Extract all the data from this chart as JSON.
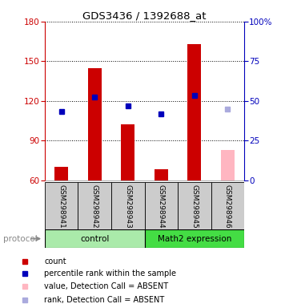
{
  "title": "GDS3436 / 1392688_at",
  "samples": [
    "GSM298941",
    "GSM298942",
    "GSM298943",
    "GSM298944",
    "GSM298945",
    "GSM298946"
  ],
  "ylim_left": [
    60,
    180
  ],
  "ylim_right": [
    0,
    100
  ],
  "yticks_left": [
    60,
    90,
    120,
    150,
    180
  ],
  "yticks_right": [
    0,
    25,
    50,
    75,
    100
  ],
  "yticklabels_right": [
    "0",
    "25",
    "50",
    "75",
    "100%"
  ],
  "bar_values": [
    70,
    145,
    102,
    68,
    163,
    83
  ],
  "bar_colors": [
    "#CC0000",
    "#CC0000",
    "#CC0000",
    "#CC0000",
    "#CC0000",
    "#FFB6C1"
  ],
  "dot_values": [
    112,
    123,
    116,
    110,
    124,
    114
  ],
  "dot_colors": [
    "#0000BB",
    "#0000BB",
    "#0000BB",
    "#0000BB",
    "#0000BB",
    "#AAAADD"
  ],
  "legend_items": [
    {
      "color": "#CC0000",
      "label": "count"
    },
    {
      "color": "#0000BB",
      "label": "percentile rank within the sample"
    },
    {
      "color": "#FFB6C1",
      "label": "value, Detection Call = ABSENT"
    },
    {
      "color": "#AAAADD",
      "label": "rank, Detection Call = ABSENT"
    }
  ],
  "left_axis_color": "#CC0000",
  "right_axis_color": "#0000BB",
  "xticklabel_area_color": "#CCCCCC",
  "control_color": "#AAEAAA",
  "math2_color": "#44DD44",
  "bar_width": 0.4
}
